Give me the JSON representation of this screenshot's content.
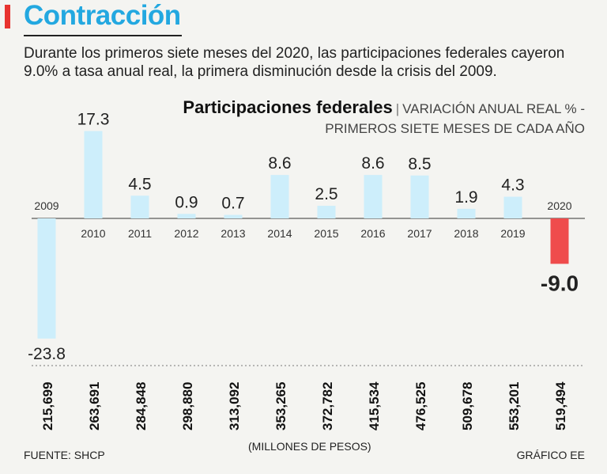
{
  "header": {
    "title": "Contracción",
    "subtitle": "Durante los primeros siete meses del 2020, las participaciones federales cayeron 9.0% a tasa anual real, la primera disminución desde la crisis del 2009."
  },
  "chart_heading": {
    "name": "Participaciones federales",
    "separator": "|",
    "line1": "VARIACIÓN ANUAL REAL % -",
    "line2": "PRIMEROS SIETE MESES DE CADA AÑO"
  },
  "chart_data": {
    "type": "bar",
    "title": "Participaciones federales",
    "ylabel": "Variación anual real %",
    "categories": [
      "2009",
      "2010",
      "2011",
      "2012",
      "2013",
      "2014",
      "2015",
      "2016",
      "2017",
      "2018",
      "2019",
      "2020"
    ],
    "values": [
      -23.8,
      17.3,
      4.5,
      0.9,
      0.7,
      8.6,
      2.5,
      8.6,
      8.5,
      1.9,
      4.3,
      -9.0
    ],
    "value_labels": [
      "-23.8",
      "17.3",
      "4.5",
      "0.9",
      "0.7",
      "8.6",
      "2.5",
      "8.6",
      "8.5",
      "1.9",
      "4.3",
      "-9.0"
    ],
    "highlight_index": 11,
    "amounts_label": "(MILLONES DE PESOS)",
    "amounts": [
      "215,699",
      "263,691",
      "284,848",
      "298,880",
      "313,092",
      "353,265",
      "372,782",
      "415,534",
      "476,525",
      "509,678",
      "553,201",
      "519,494"
    ],
    "colors": {
      "bar": "#cdeefb",
      "highlight": "#ef4c4c",
      "text": "#222222"
    }
  },
  "footer": {
    "source": "FUENTE: SHCP",
    "credit": "GRÁFICO EE"
  }
}
